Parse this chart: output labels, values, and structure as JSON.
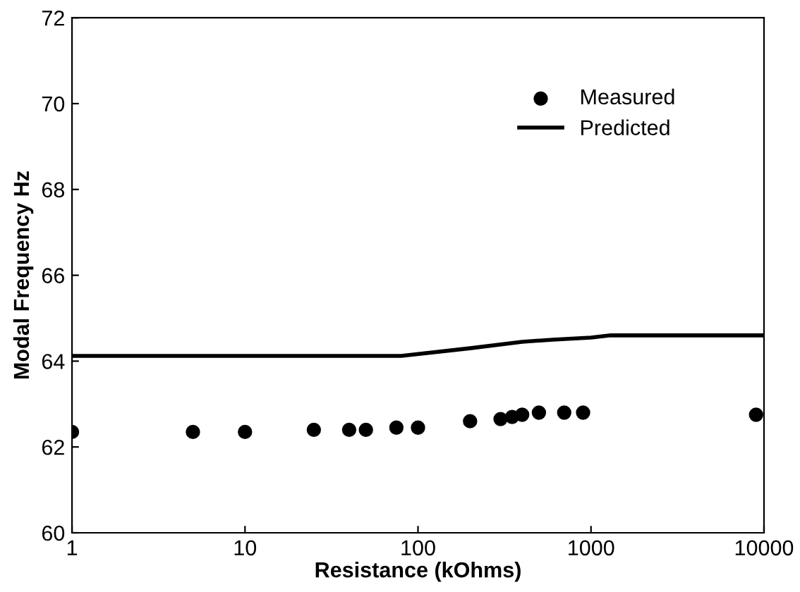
{
  "chart_data": {
    "type": "scatter",
    "xlabel": "Resistance (kOhms)",
    "ylabel": "Modal Frequency Hz",
    "log": "x",
    "xlim": [
      1,
      10000
    ],
    "xticks": [
      1,
      10,
      100,
      1000,
      10000
    ],
    "ylim": [
      60,
      72
    ],
    "yticks": [
      60,
      62,
      64,
      66,
      68,
      70,
      72
    ],
    "grid": false,
    "legend": "top right",
    "series": [
      {
        "name": "Measured",
        "marker": "circle",
        "color": "#000000",
        "x": [
          1,
          5,
          10,
          25,
          40,
          50,
          75,
          100,
          200,
          300,
          350,
          400,
          500,
          700,
          900,
          9000
        ],
        "values": [
          62.35,
          62.35,
          62.35,
          62.4,
          62.4,
          62.4,
          62.45,
          62.45,
          62.6,
          62.65,
          62.7,
          62.75,
          62.8,
          62.8,
          62.8,
          62.75
        ]
      },
      {
        "name": "Predicted",
        "type": "line",
        "marker": "none",
        "line_style": "solid",
        "color": "#000000",
        "x": [
          1,
          80,
          200,
          400,
          600,
          1000,
          1300,
          10000
        ],
        "values": [
          64.12,
          64.12,
          64.3,
          64.45,
          64.5,
          64.55,
          64.6,
          64.6
        ]
      }
    ]
  }
}
